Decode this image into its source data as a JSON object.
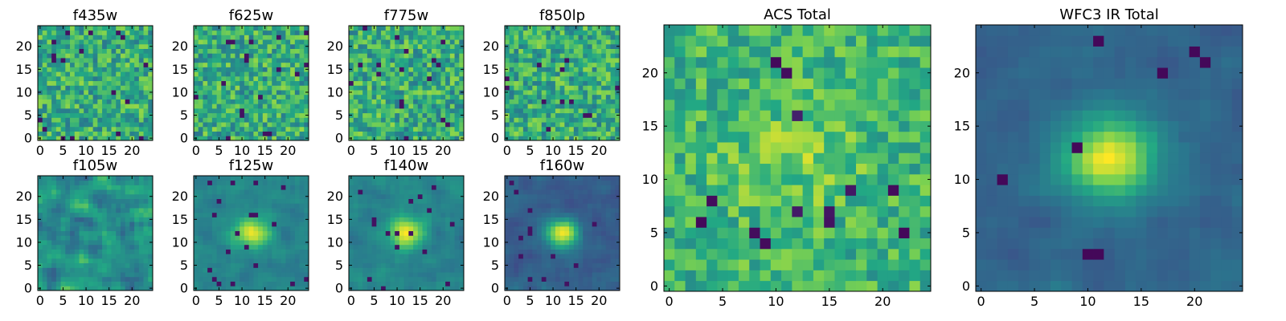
{
  "figure": {
    "colormap": "viridis",
    "colormap_stops": [
      "#440154",
      "#414487",
      "#2a788e",
      "#22a884",
      "#7ad151",
      "#fde725"
    ]
  },
  "panels": [
    {
      "id": "f435w",
      "title": "f435w",
      "grid_size": 25,
      "xticks": [
        "0",
        "5",
        "10",
        "15",
        "20"
      ],
      "yticks": [
        "0",
        "5",
        "10",
        "15",
        "20"
      ],
      "pattern": "noise"
    },
    {
      "id": "f625w",
      "title": "f625w",
      "grid_size": 25,
      "xticks": [
        "0",
        "5",
        "10",
        "15",
        "20"
      ],
      "yticks": [
        "0",
        "5",
        "10",
        "15",
        "20"
      ],
      "pattern": "noise"
    },
    {
      "id": "f775w",
      "title": "f775w",
      "grid_size": 25,
      "xticks": [
        "0",
        "5",
        "10",
        "15",
        "20"
      ],
      "yticks": [
        "0",
        "5",
        "10",
        "15",
        "20"
      ],
      "pattern": "noise"
    },
    {
      "id": "f850lp",
      "title": "f850lp",
      "grid_size": 25,
      "xticks": [
        "0",
        "5",
        "10",
        "15",
        "20"
      ],
      "yticks": [
        "0",
        "5",
        "10",
        "15",
        "20"
      ],
      "pattern": "noise"
    },
    {
      "id": "f105w",
      "title": "f105w",
      "grid_size": 25,
      "xticks": [
        "0",
        "5",
        "10",
        "15",
        "20"
      ],
      "yticks": [
        "0",
        "5",
        "10",
        "15",
        "20"
      ],
      "pattern": "smooth"
    },
    {
      "id": "f125w",
      "title": "f125w",
      "grid_size": 25,
      "xticks": [
        "0",
        "5",
        "10",
        "15",
        "20"
      ],
      "yticks": [
        "0",
        "5",
        "10",
        "15",
        "20"
      ],
      "pattern": "source"
    },
    {
      "id": "f140w",
      "title": "f140w",
      "grid_size": 25,
      "xticks": [
        "0",
        "5",
        "10",
        "15",
        "20"
      ],
      "yticks": [
        "0",
        "5",
        "10",
        "15",
        "20"
      ],
      "pattern": "source"
    },
    {
      "id": "f160w",
      "title": "f160w",
      "grid_size": 25,
      "xticks": [
        "0",
        "5",
        "10",
        "15",
        "20"
      ],
      "yticks": [
        "0",
        "5",
        "10",
        "15",
        "20"
      ],
      "pattern": "source-strong"
    },
    {
      "id": "acs-total",
      "title": "ACS Total",
      "grid_size": 25,
      "xticks": [
        "0",
        "5",
        "10",
        "15",
        "20"
      ],
      "yticks": [
        "0",
        "5",
        "10",
        "15",
        "20"
      ],
      "pattern": "noise-bright"
    },
    {
      "id": "wfc3-ir-total",
      "title": "WFC3 IR Total",
      "grid_size": 25,
      "xticks": [
        "0",
        "5",
        "10",
        "15",
        "20"
      ],
      "yticks": [
        "0",
        "5",
        "10",
        "15",
        "20"
      ],
      "pattern": "source-total"
    }
  ]
}
